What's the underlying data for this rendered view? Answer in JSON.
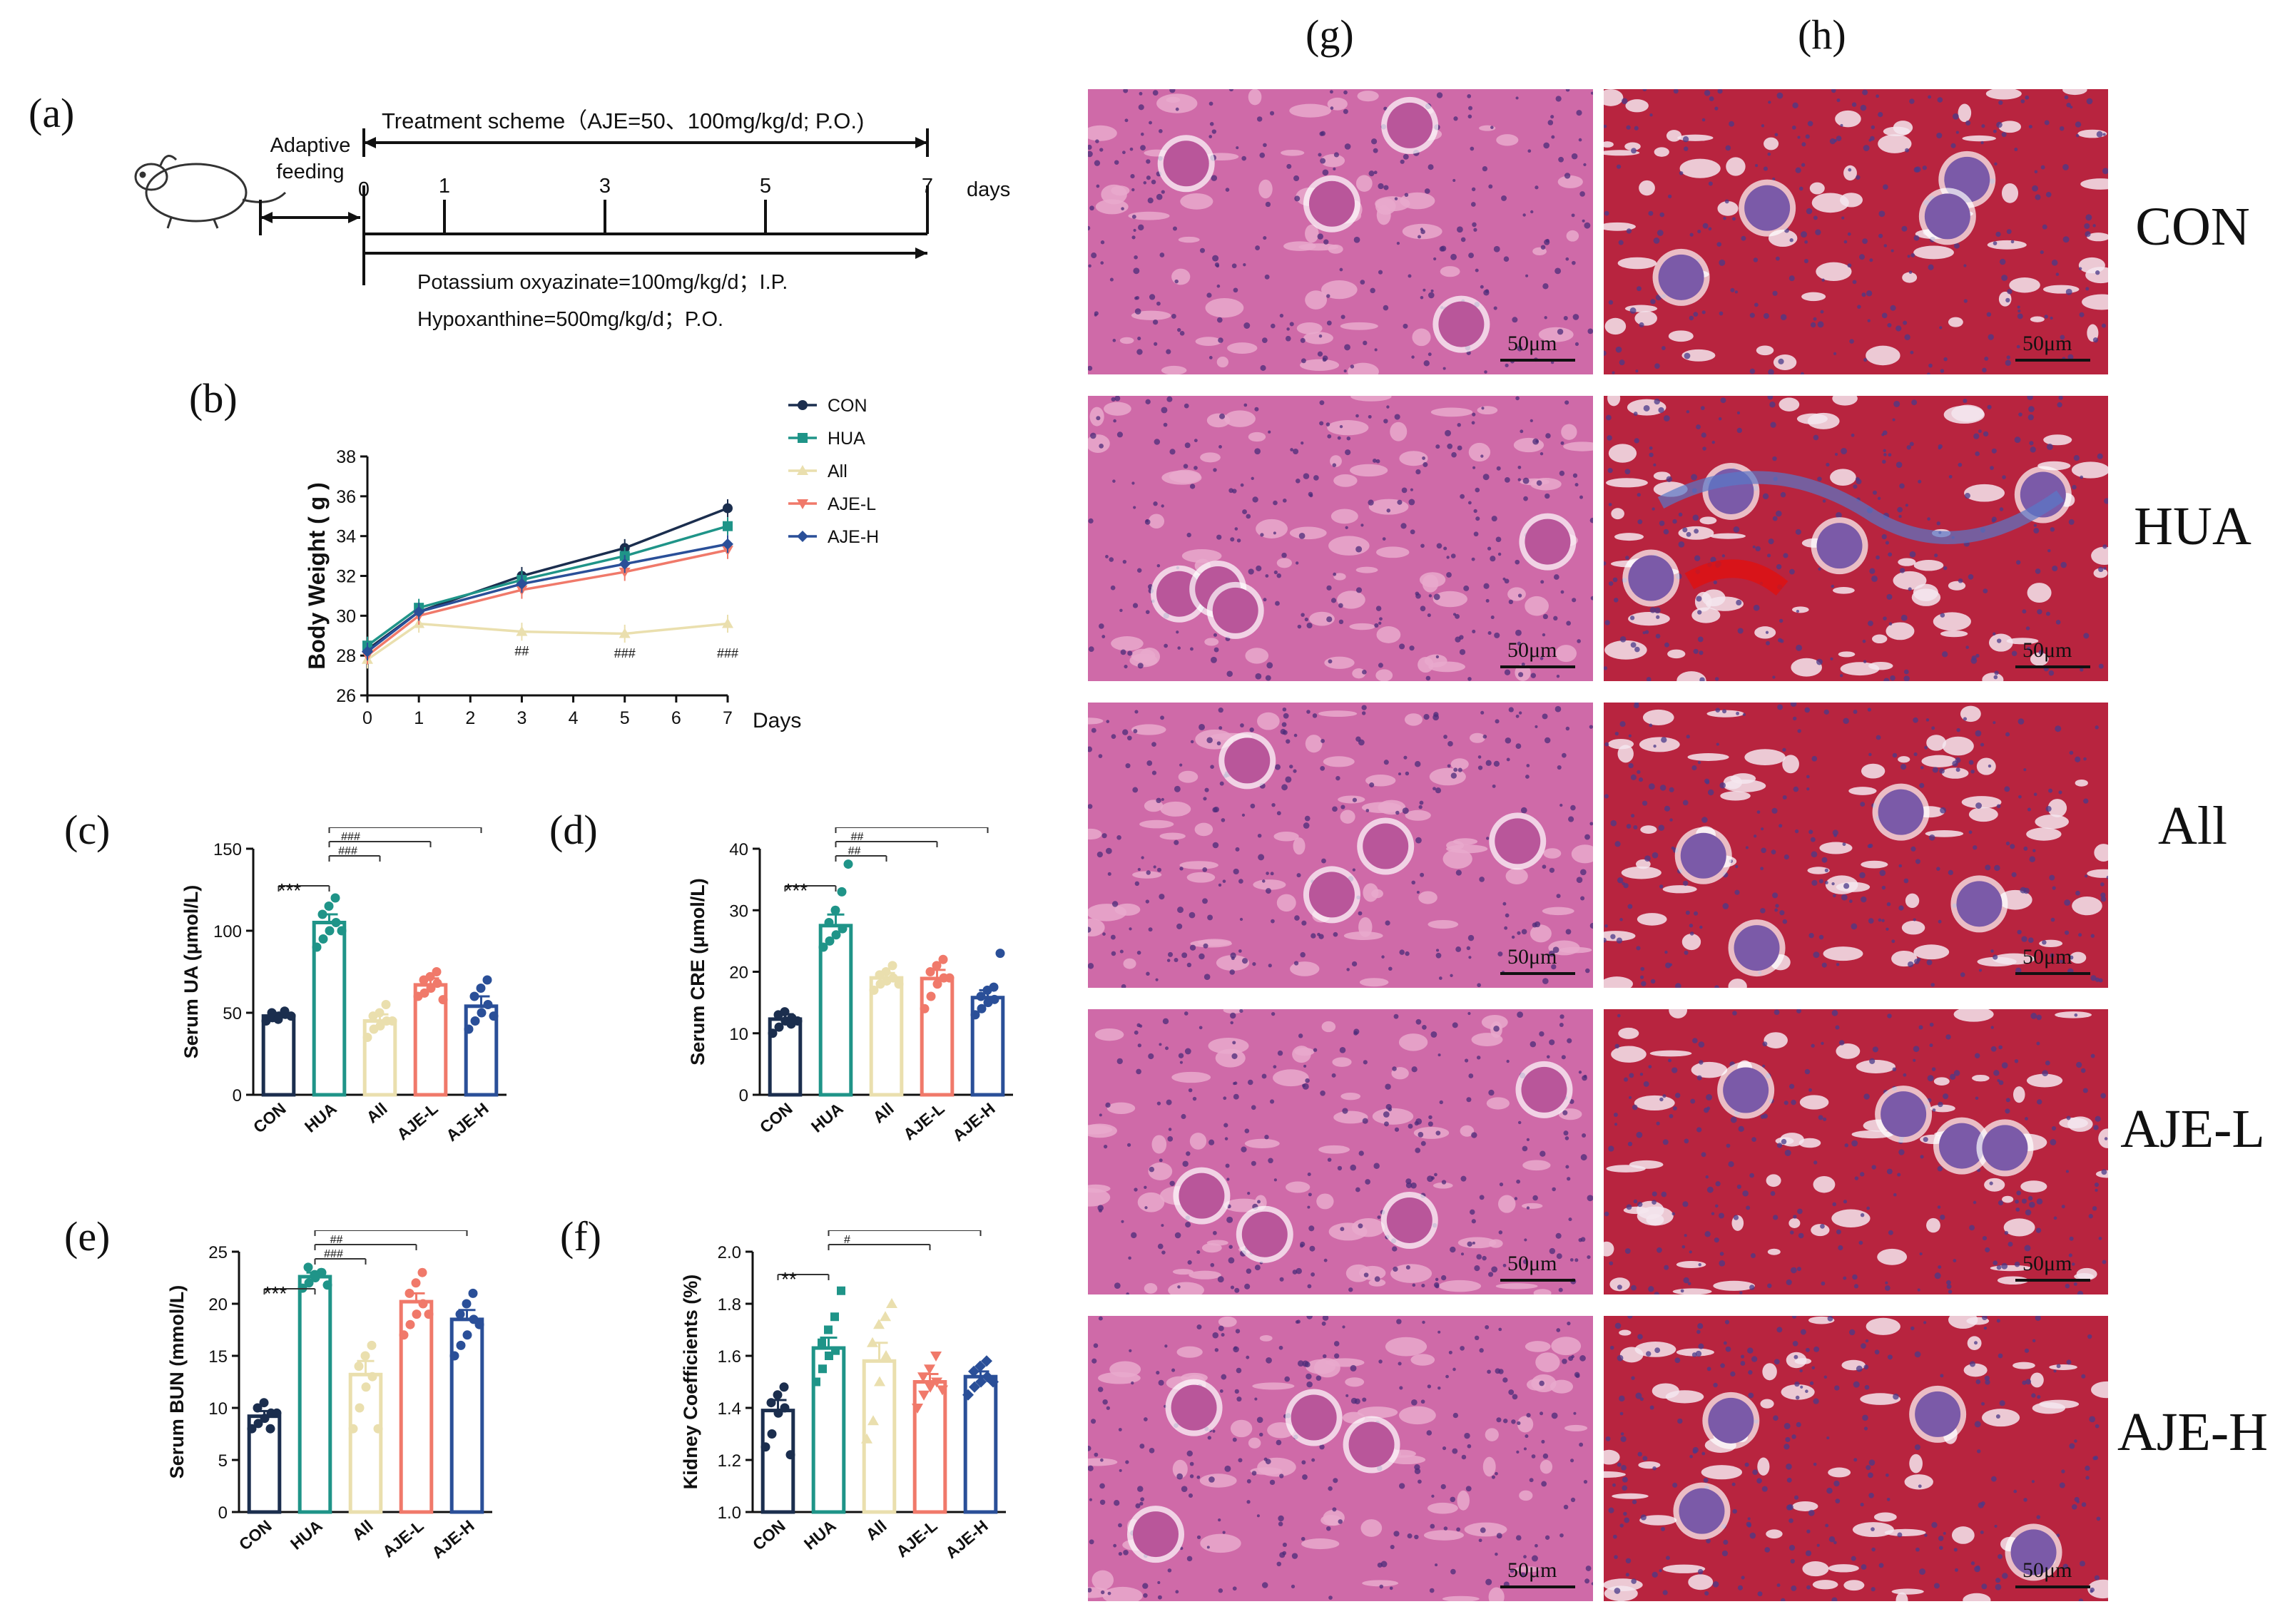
{
  "panels": {
    "a": "(a)",
    "b": "(b)",
    "c": "(c)",
    "d": "(d)",
    "e": "(e)",
    "f": "(f)",
    "g": "(g)",
    "h": "(h)"
  },
  "scheme": {
    "adaptive_line1": "Adaptive",
    "adaptive_line2": "feeding",
    "treatment": "Treatment scheme（AJE=50、100mg/kg/d; P.O.)",
    "days_ticks": [
      "0",
      "1",
      "3",
      "5",
      "7"
    ],
    "days_label": "days",
    "line1": "Potassium oxyazinate=100mg/kg/d；I.P.",
    "line2": "Hypoxanthine=500mg/kg/d；P.O."
  },
  "groups": [
    "CON",
    "HUA",
    "All",
    "AJE-L",
    "AJE-H"
  ],
  "colors": {
    "CON": "#1b2e4e",
    "HUA": "#1f9488",
    "All": "#eadfae",
    "AJE-L": "#f0796a",
    "AJE-H": "#2a4f98"
  },
  "histology": {
    "scale_label": "50μm",
    "he_bg": "#cf6aa8",
    "masson_bg": "#b8243f"
  },
  "chart_data": [
    {
      "id": "b",
      "type": "line",
      "xlabel": "Days",
      "ylabel": "Body Weight ( g )",
      "ylim": [
        26,
        38
      ],
      "xlim": [
        0,
        7
      ],
      "xticks": [
        0,
        1,
        2,
        3,
        4,
        5,
        6,
        7
      ],
      "yticks": [
        26,
        28,
        30,
        32,
        34,
        36,
        38
      ],
      "x": [
        0,
        1,
        3,
        5,
        7
      ],
      "legend": "top-right",
      "series": [
        {
          "name": "CON",
          "values": [
            28.3,
            30.2,
            32.0,
            33.4,
            35.4
          ]
        },
        {
          "name": "HUA",
          "values": [
            28.5,
            30.4,
            31.8,
            33.0,
            34.5
          ]
        },
        {
          "name": "All",
          "values": [
            27.8,
            29.6,
            29.2,
            29.1,
            29.6
          ]
        },
        {
          "name": "AJE-L",
          "values": [
            28.0,
            30.0,
            31.3,
            32.2,
            33.3
          ]
        },
        {
          "name": "AJE-H",
          "values": [
            28.2,
            30.2,
            31.6,
            32.6,
            33.6
          ]
        }
      ],
      "annotations": [
        {
          "x": 3,
          "y": 28.0,
          "text": "##"
        },
        {
          "x": 5,
          "y": 27.9,
          "text": "###"
        },
        {
          "x": 7,
          "y": 27.9,
          "text": "###"
        }
      ]
    },
    {
      "id": "c",
      "type": "bar",
      "ylabel": "Serum UA (μmol/L)",
      "ylim": [
        0,
        150
      ],
      "yticks": [
        0,
        50,
        100,
        150
      ],
      "categories": [
        "CON",
        "HUA",
        "All",
        "AJE-L",
        "AJE-H"
      ],
      "values": [
        48,
        105,
        45,
        67,
        54
      ],
      "sem": [
        2,
        5,
        4,
        4,
        6
      ],
      "points": [
        [
          45,
          47,
          48,
          49,
          50,
          46,
          51,
          48
        ],
        [
          90,
          95,
          100,
          105,
          110,
          115,
          120,
          100
        ],
        [
          35,
          40,
          42,
          45,
          48,
          50,
          55,
          45
        ],
        [
          60,
          62,
          65,
          68,
          70,
          72,
          75,
          58
        ],
        [
          40,
          45,
          50,
          55,
          60,
          65,
          70,
          48
        ]
      ],
      "significance": [
        {
          "from": 0,
          "to": 1,
          "text": "***"
        },
        {
          "from": 1,
          "to": 2,
          "text": "###"
        },
        {
          "from": 1,
          "to": 3,
          "text": "###"
        },
        {
          "from": 1,
          "to": 4,
          "text": "###"
        }
      ]
    },
    {
      "id": "d",
      "type": "bar",
      "ylabel": "Serum CRE (μmol/L)",
      "ylim": [
        0,
        40
      ],
      "yticks": [
        0,
        10,
        20,
        30,
        40
      ],
      "categories": [
        "CON",
        "HUA",
        "All",
        "AJE-L",
        "AJE-H"
      ],
      "values": [
        12.3,
        27.5,
        19.0,
        18.9,
        15.8
      ],
      "sem": [
        0.8,
        1.8,
        0.8,
        1.4,
        1.2
      ],
      "points": [
        [
          10,
          11,
          12,
          12.5,
          13,
          13.5,
          11.5,
          12
        ],
        [
          24,
          25,
          26,
          27,
          28,
          30,
          33,
          37.5
        ],
        [
          17,
          18,
          18.5,
          19,
          19.5,
          20,
          21,
          18
        ],
        [
          14,
          16,
          18,
          19,
          20,
          21,
          22,
          19
        ],
        [
          13,
          14,
          15,
          15.5,
          16,
          17,
          17.5,
          23
        ]
      ],
      "significance": [
        {
          "from": 0,
          "to": 1,
          "text": "***"
        },
        {
          "from": 1,
          "to": 2,
          "text": "##"
        },
        {
          "from": 1,
          "to": 3,
          "text": "##"
        },
        {
          "from": 1,
          "to": 4,
          "text": "###"
        }
      ]
    },
    {
      "id": "e",
      "type": "bar",
      "ylabel": "Serum BUN (mmol/L)",
      "ylim": [
        0,
        25
      ],
      "yticks": [
        0,
        5,
        10,
        15,
        20,
        25
      ],
      "categories": [
        "CON",
        "HUA",
        "All",
        "AJE-L",
        "AJE-H"
      ],
      "values": [
        9.2,
        22.6,
        13.2,
        20.2,
        18.5
      ],
      "sem": [
        0.5,
        0.4,
        1.3,
        0.8,
        0.9
      ],
      "points": [
        [
          8,
          8.5,
          9,
          9.5,
          10,
          10.5,
          8,
          9.5
        ],
        [
          21.5,
          22,
          22.5,
          23,
          23.5,
          22.8,
          23,
          21.8
        ],
        [
          8,
          10,
          12,
          13,
          14,
          15,
          16,
          8
        ],
        [
          17,
          18,
          19,
          20,
          21,
          22,
          23,
          19
        ],
        [
          15,
          16,
          17,
          18.5,
          19,
          20,
          21,
          18
        ]
      ],
      "significance": [
        {
          "from": 0,
          "to": 1,
          "text": "***"
        },
        {
          "from": 1,
          "to": 2,
          "text": "###"
        },
        {
          "from": 1,
          "to": 3,
          "text": "##"
        },
        {
          "from": 1,
          "to": 4,
          "text": "###"
        }
      ]
    },
    {
      "id": "f",
      "type": "bar",
      "ylabel": "Kidney Coefficients (%)",
      "ylim": [
        1.0,
        2.0
      ],
      "yticks": [
        1.0,
        1.2,
        1.4,
        1.6,
        1.8,
        2.0
      ],
      "categories": [
        "CON",
        "HUA",
        "All",
        "AJE-L",
        "AJE-H"
      ],
      "values": [
        1.39,
        1.63,
        1.58,
        1.5,
        1.52
      ],
      "sem": [
        0.04,
        0.04,
        0.07,
        0.03,
        0.02
      ],
      "points": [
        [
          1.25,
          1.3,
          1.38,
          1.4,
          1.42,
          1.45,
          1.48,
          1.22
        ],
        [
          1.5,
          1.55,
          1.6,
          1.62,
          1.65,
          1.7,
          1.75,
          1.85
        ],
        [
          1.28,
          1.35,
          1.5,
          1.6,
          1.65,
          1.72,
          1.75,
          1.8
        ],
        [
          1.4,
          1.45,
          1.48,
          1.5,
          1.52,
          1.55,
          1.6,
          1.47
        ],
        [
          1.45,
          1.48,
          1.5,
          1.52,
          1.54,
          1.56,
          1.58,
          1.5
        ]
      ],
      "significance": [
        {
          "from": 0,
          "to": 1,
          "text": "**"
        },
        {
          "from": 1,
          "to": 3,
          "text": "#"
        },
        {
          "from": 1,
          "to": 4,
          "text": "#"
        }
      ]
    }
  ]
}
